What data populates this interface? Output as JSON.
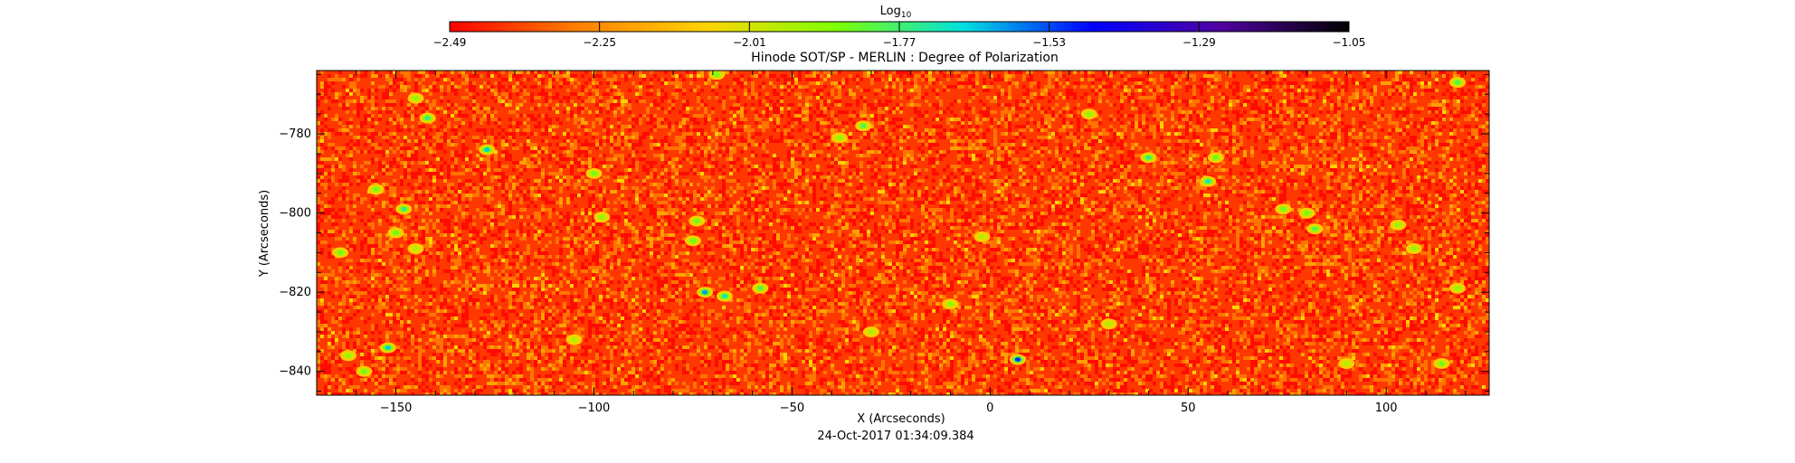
{
  "chart_data": {
    "type": "heatmap",
    "title": "Hinode SOT/SP - MERLIN : Degree of Polarization",
    "xlabel": "X (Arcseconds)",
    "ylabel": "Y (Arcseconds)",
    "timestamp": "24-Oct-2017 01:34:09.384",
    "xlim": [
      -170,
      126
    ],
    "ylim": [
      -846,
      -764
    ],
    "x_ticks": [
      {
        "value": -150,
        "label": "−150"
      },
      {
        "value": -100,
        "label": "−100"
      },
      {
        "value": -50,
        "label": "−50"
      },
      {
        "value": 0,
        "label": "0"
      },
      {
        "value": 50,
        "label": "50"
      },
      {
        "value": 100,
        "label": "100"
      }
    ],
    "y_ticks": [
      {
        "value": -780,
        "label": "−780"
      },
      {
        "value": -800,
        "label": "−800"
      },
      {
        "value": -820,
        "label": "−820"
      },
      {
        "value": -840,
        "label": "−840"
      }
    ],
    "colorbar": {
      "label_base": "Log",
      "label_sub": "10",
      "range": [
        -2.49,
        -1.05
      ],
      "ticks": [
        {
          "value": -2.49,
          "label": "−2.49"
        },
        {
          "value": -2.25,
          "label": "−2.25"
        },
        {
          "value": -2.01,
          "label": "−2.01"
        },
        {
          "value": -1.77,
          "label": "−1.77"
        },
        {
          "value": -1.53,
          "label": "−1.53"
        },
        {
          "value": -1.29,
          "label": "−1.29"
        },
        {
          "value": -1.05,
          "label": "−1.05"
        }
      ],
      "colors": [
        "#ff0000",
        "#ff7f00",
        "#ffd400",
        "#7fff00",
        "#00e0e0",
        "#0000ff",
        "#5000a0",
        "#000000"
      ]
    },
    "background_level": -2.4,
    "features": [
      {
        "x": -148,
        "y": -799,
        "level": -1.75
      },
      {
        "x": -155,
        "y": -794,
        "level": -1.85
      },
      {
        "x": -150,
        "y": -805,
        "level": -1.85
      },
      {
        "x": -145,
        "y": -809,
        "level": -1.95
      },
      {
        "x": -142,
        "y": -776,
        "level": -1.75
      },
      {
        "x": -145,
        "y": -771,
        "level": -1.9
      },
      {
        "x": -164,
        "y": -810,
        "level": -1.85
      },
      {
        "x": -162,
        "y": -836,
        "level": -1.9
      },
      {
        "x": -152,
        "y": -834,
        "level": -1.65
      },
      {
        "x": -158,
        "y": -840,
        "level": -1.85
      },
      {
        "x": -127,
        "y": -784,
        "level": -1.65
      },
      {
        "x": -100,
        "y": -790,
        "level": -1.85
      },
      {
        "x": -98,
        "y": -801,
        "level": -1.9
      },
      {
        "x": -105,
        "y": -832,
        "level": -1.95
      },
      {
        "x": -72,
        "y": -820,
        "level": -1.6
      },
      {
        "x": -67,
        "y": -821,
        "level": -1.7
      },
      {
        "x": -58,
        "y": -819,
        "level": -1.8
      },
      {
        "x": -74,
        "y": -802,
        "level": -1.85
      },
      {
        "x": -75,
        "y": -807,
        "level": -1.85
      },
      {
        "x": -69,
        "y": -765,
        "level": -1.85
      },
      {
        "x": -32,
        "y": -778,
        "level": -1.8
      },
      {
        "x": -38,
        "y": -781,
        "level": -1.9
      },
      {
        "x": -10,
        "y": -823,
        "level": -1.9
      },
      {
        "x": -2,
        "y": -806,
        "level": -1.95
      },
      {
        "x": 7,
        "y": -837,
        "level": -1.5
      },
      {
        "x": 25,
        "y": -775,
        "level": -1.9
      },
      {
        "x": 40,
        "y": -786,
        "level": -1.75
      },
      {
        "x": 55,
        "y": -792,
        "level": -1.7
      },
      {
        "x": 57,
        "y": -786,
        "level": -1.85
      },
      {
        "x": 74,
        "y": -799,
        "level": -1.85
      },
      {
        "x": 82,
        "y": -804,
        "level": -1.8
      },
      {
        "x": 80,
        "y": -800,
        "level": -1.85
      },
      {
        "x": 103,
        "y": -803,
        "level": -1.9
      },
      {
        "x": 107,
        "y": -809,
        "level": -1.9
      },
      {
        "x": 118,
        "y": -819,
        "level": -1.9
      },
      {
        "x": 118,
        "y": -767,
        "level": -1.8
      },
      {
        "x": 114,
        "y": -838,
        "level": -1.85
      },
      {
        "x": 90,
        "y": -838,
        "level": -1.95
      },
      {
        "x": -30,
        "y": -830,
        "level": -1.95
      },
      {
        "x": 30,
        "y": -828,
        "level": -1.95
      }
    ]
  }
}
